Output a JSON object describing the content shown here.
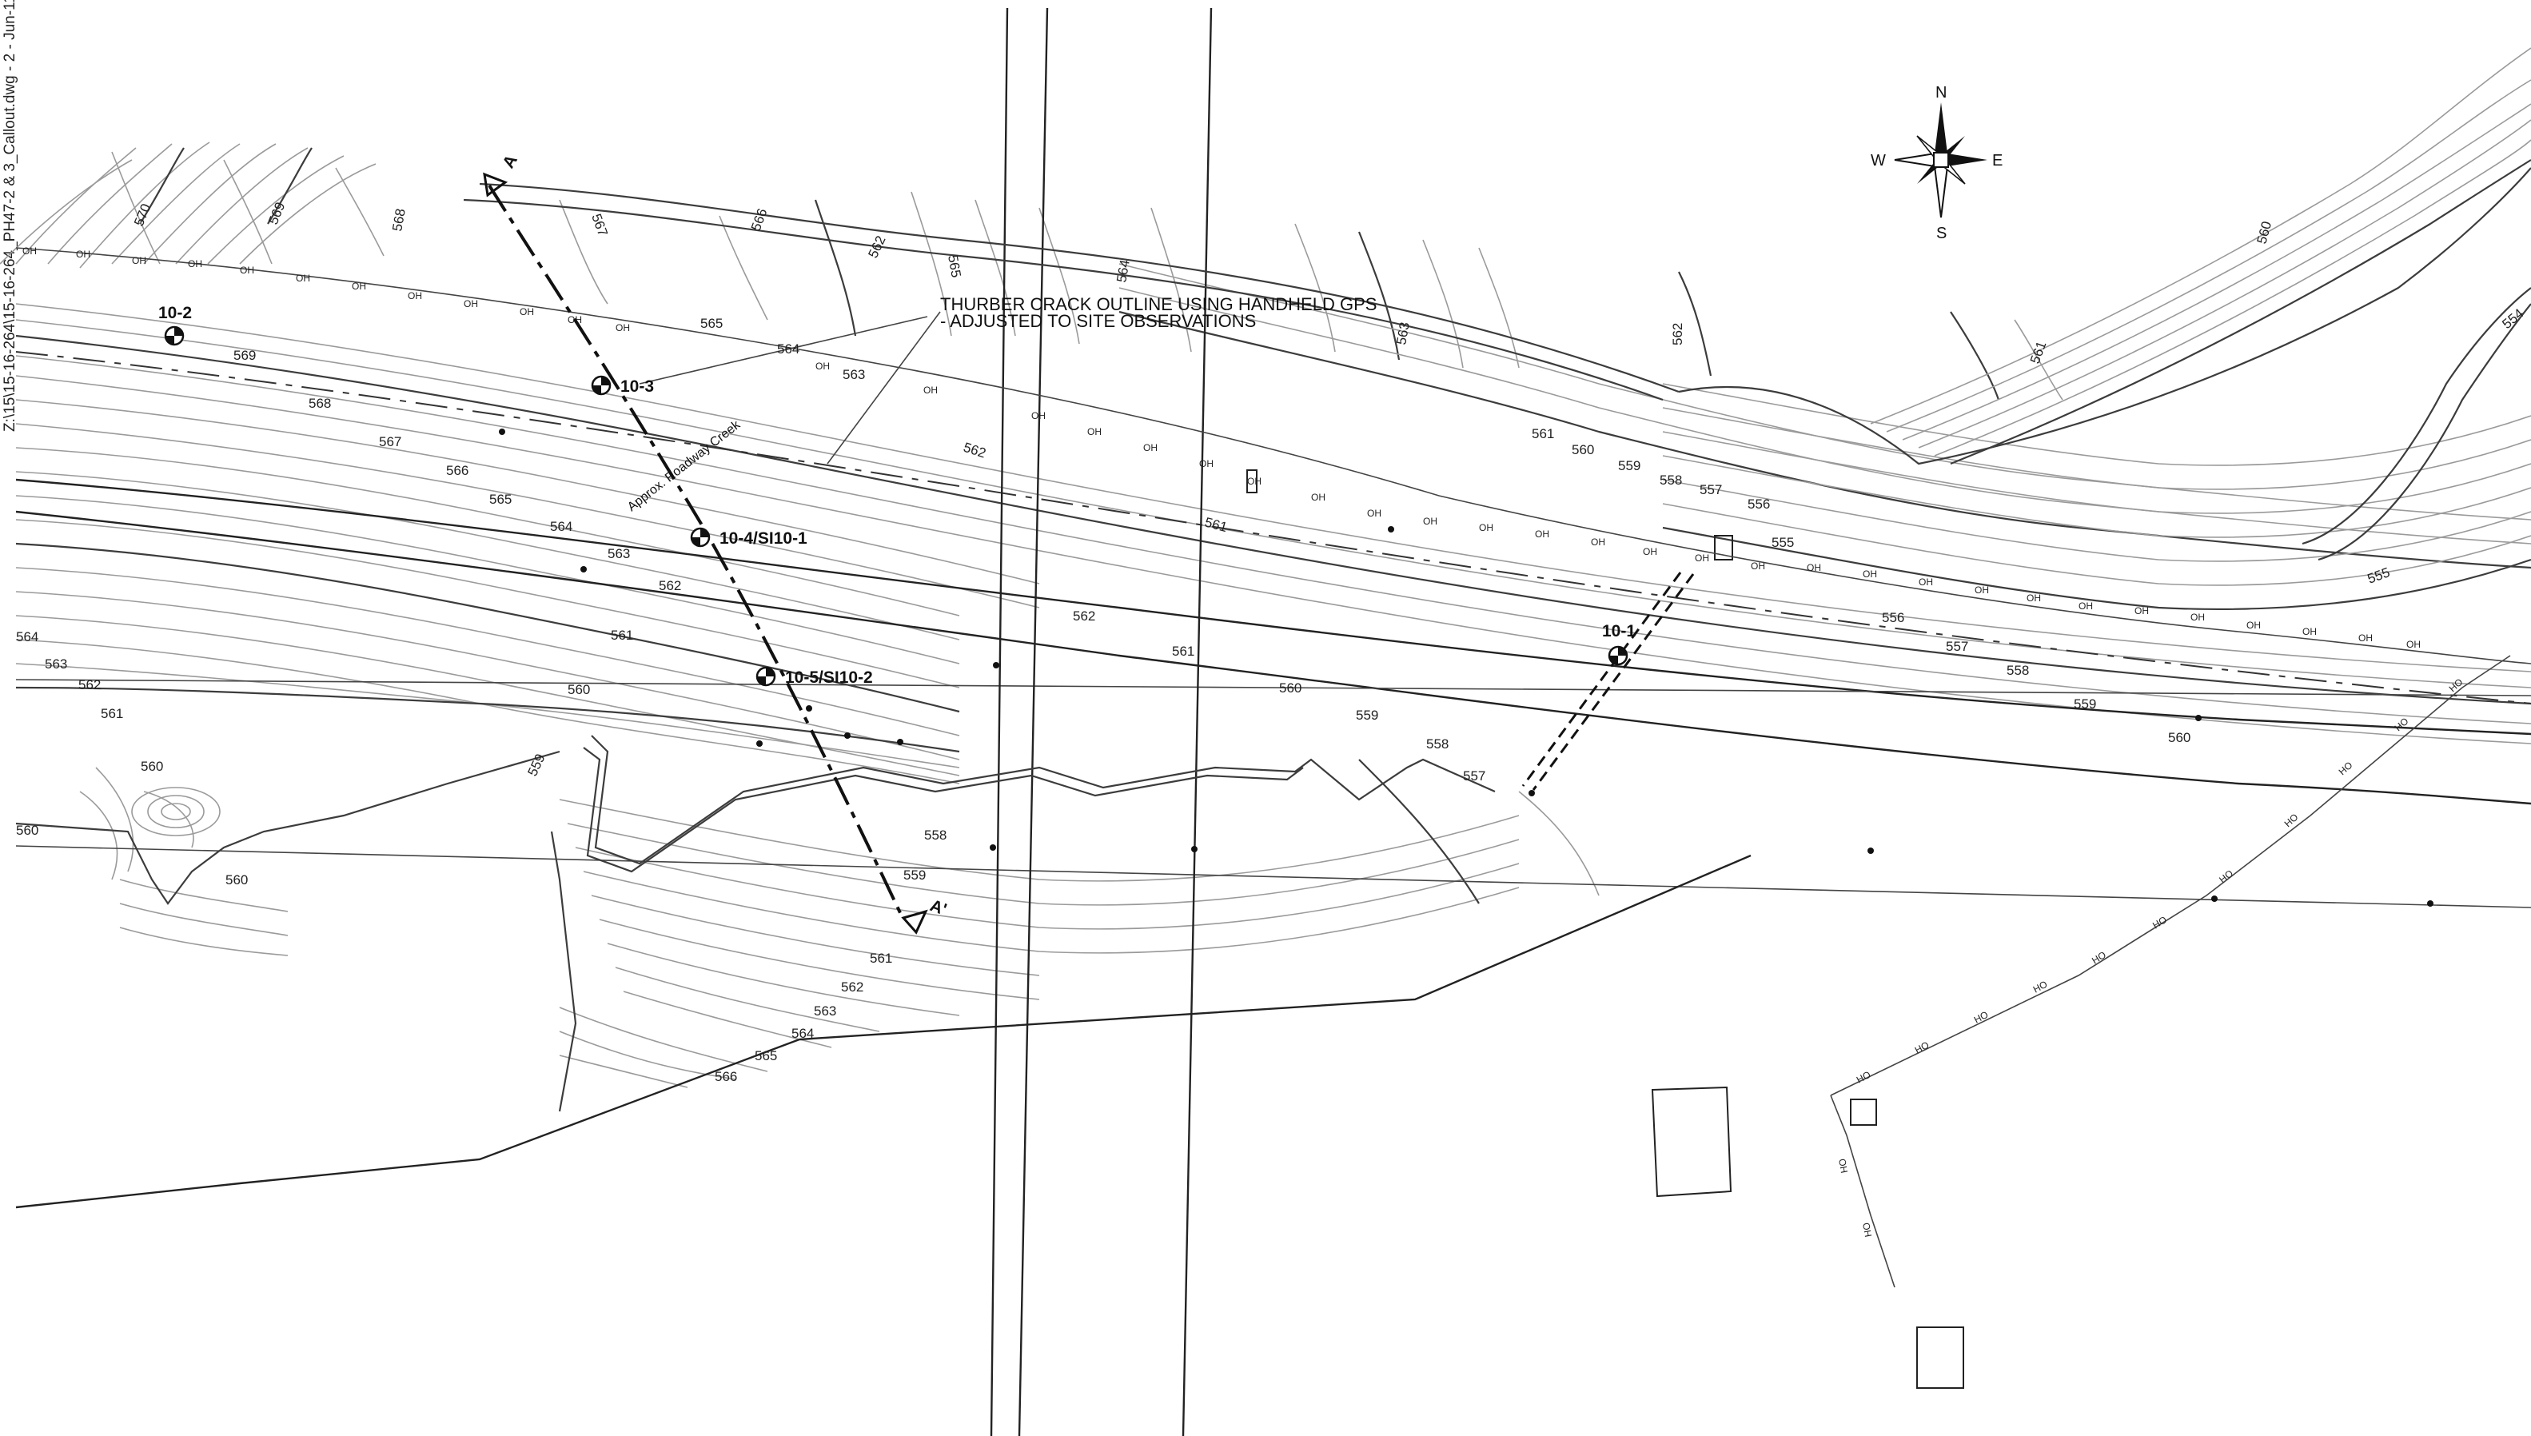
{
  "file_path_label": "Z:\\15\\15-16-264\\15-16-264_PH47-2 & 3_Callout.dwg - 2 - Jun-11",
  "note": {
    "line1": "THURBER CRACK OUTLINE USING HANDHELD GPS",
    "line2": "- ADJUSTED TO SITE OBSERVATIONS"
  },
  "creek_label": "Approx. Roadway Creek",
  "compass": {
    "n": "N",
    "s": "S",
    "e": "E",
    "w": "W"
  },
  "section": {
    "start": "A",
    "end": "A'"
  },
  "boreholes": {
    "bh1": "10-1",
    "bh2": "10-2",
    "bh3": "10-3",
    "bh4": "10-4/SI10-1",
    "bh5": "10-5/SI10-2"
  },
  "utility_codes": {
    "overhead": "OH",
    "hydro": "HO"
  },
  "contour_labels": {
    "c570": "570",
    "c569a": "569",
    "c569b": "569",
    "c568a": "568",
    "c568b": "568",
    "c567a": "567",
    "c567b": "567",
    "c566a": "566",
    "c566b": "566",
    "c566c": "566",
    "c565a": "565",
    "c565b": "565",
    "c565c": "565",
    "c565d": "565",
    "c564a": "564",
    "c564b": "564",
    "c564c": "564",
    "c564d": "564",
    "c564e": "564",
    "c563a": "563",
    "c563b": "563",
    "c563c": "563",
    "c563d": "563",
    "c563e": "563",
    "c562a": "562",
    "c562b": "562",
    "c562c": "562",
    "c562d": "562",
    "c562e": "562",
    "c562f": "562",
    "c562g": "562",
    "c561a": "561",
    "c561b": "561",
    "c561c": "561",
    "c561d": "561",
    "c561e": "561",
    "c561f": "561",
    "c561g": "561",
    "c560a": "560",
    "c560b": "560",
    "c560c": "560",
    "c560d": "560",
    "c560e": "560",
    "c560f": "560",
    "c560g": "560",
    "c560h": "560",
    "c559a": "559",
    "c559b": "559",
    "c559c": "559",
    "c559d": "559",
    "c559e": "559",
    "c558a": "558",
    "c558b": "558",
    "c558c": "558",
    "c558d": "558",
    "c557a": "557",
    "c557b": "557",
    "c557c": "557",
    "c556a": "556",
    "c556b": "556",
    "c556c": "556",
    "c555a": "555",
    "c555b": "555",
    "c554": "554"
  }
}
